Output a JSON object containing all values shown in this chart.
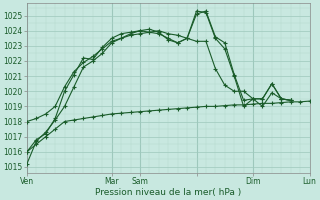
{
  "xlabel": "Pression niveau de la mer( hPa )",
  "ylim": [
    1014.6,
    1025.8
  ],
  "xlim": [
    0,
    30
  ],
  "bg_color": "#c8e8e0",
  "line_color": "#1a5c2a",
  "grid_major_color": "#9ec8bc",
  "grid_minor_color": "#b4d8cc",
  "tick_label_color": "#1a5c2a",
  "lines": [
    {
      "x": [
        0,
        1,
        2,
        3,
        4,
        5,
        6,
        7,
        8,
        9,
        10,
        11,
        12,
        13,
        14,
        15,
        16,
        17,
        18,
        19,
        20,
        21,
        22,
        23,
        24,
        25,
        26,
        27,
        28,
        29,
        30
      ],
      "y": [
        1016.0,
        1016.5,
        1017.0,
        1017.5,
        1018.0,
        1018.1,
        1018.2,
        1018.3,
        1018.4,
        1018.5,
        1018.55,
        1018.6,
        1018.65,
        1018.7,
        1018.75,
        1018.8,
        1018.85,
        1018.9,
        1018.95,
        1019.0,
        1019.0,
        1019.05,
        1019.1,
        1019.1,
        1019.15,
        1019.2,
        1019.2,
        1019.25,
        1019.3,
        1019.3,
        1019.35
      ]
    },
    {
      "x": [
        0,
        1,
        2,
        3,
        4,
        5,
        6,
        7,
        8,
        9,
        10,
        11,
        12,
        13,
        14,
        15,
        16,
        17,
        18,
        19,
        20,
        21,
        22,
        23,
        24,
        25,
        26,
        27,
        28
      ],
      "y": [
        1018.0,
        1018.2,
        1018.5,
        1019.0,
        1020.3,
        1021.3,
        1021.9,
        1022.3,
        1022.8,
        1023.3,
        1023.5,
        1023.7,
        1023.8,
        1023.9,
        1024.0,
        1023.8,
        1023.7,
        1023.5,
        1023.3,
        1023.3,
        1021.5,
        1020.4,
        1020.0,
        1020.0,
        1019.5,
        1019.0,
        1019.9,
        1019.5,
        1019.4
      ]
    },
    {
      "x": [
        0,
        1,
        2,
        3,
        4,
        5,
        6,
        7,
        8,
        9,
        10,
        11,
        12,
        13,
        14,
        15,
        16,
        17,
        18,
        19,
        20,
        21,
        22,
        23,
        24,
        25,
        26,
        27,
        28
      ],
      "y": [
        1015.2,
        1016.7,
        1017.3,
        1018.1,
        1019.0,
        1020.3,
        1021.6,
        1022.0,
        1022.5,
        1023.2,
        1023.5,
        1023.8,
        1024.0,
        1023.9,
        1023.8,
        1023.5,
        1023.2,
        1023.5,
        1025.1,
        1025.3,
        1023.6,
        1023.2,
        1021.1,
        1019.4,
        1019.5,
        1019.5,
        1020.5,
        1019.5,
        1019.4
      ]
    },
    {
      "x": [
        0,
        1,
        2,
        3,
        4,
        5,
        6,
        7,
        8,
        9,
        10,
        11,
        12,
        13,
        14,
        15,
        16,
        17,
        18,
        19,
        20,
        21,
        22,
        23,
        24,
        25,
        26,
        27,
        28
      ],
      "y": [
        1016.0,
        1016.8,
        1017.2,
        1018.2,
        1020.0,
        1021.1,
        1022.2,
        1022.1,
        1022.9,
        1023.5,
        1023.8,
        1023.9,
        1024.0,
        1024.1,
        1023.9,
        1023.4,
        1023.2,
        1023.5,
        1025.3,
        1025.2,
        1023.5,
        1022.8,
        1021.0,
        1019.0,
        1019.5,
        1019.5,
        1020.5,
        1019.5,
        1019.4
      ]
    }
  ],
  "x_tick_positions": [
    0,
    9,
    12,
    18,
    24,
    30
  ],
  "x_tick_labels": [
    "Ven",
    "Mar",
    "Sam",
    "",
    "Dim",
    "Lun"
  ],
  "yticks": [
    1015,
    1016,
    1017,
    1018,
    1019,
    1020,
    1021,
    1022,
    1023,
    1024,
    1025
  ]
}
